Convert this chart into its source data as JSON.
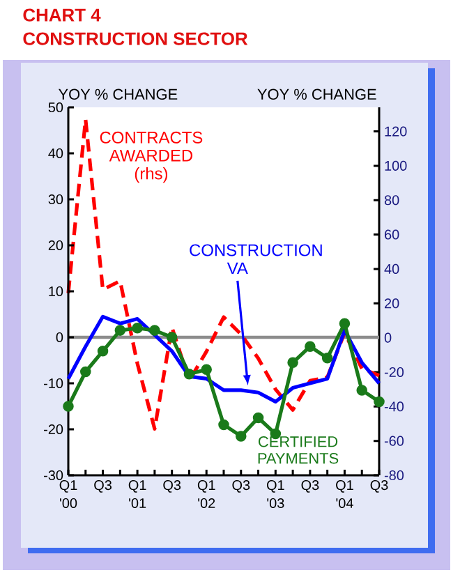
{
  "chart_data": {
    "type": "line",
    "title": "CHART 4",
    "subtitle": "CONSTRUCTION SECTOR",
    "ylabel": "YOY % CHANGE",
    "y2label": "YOY % CHANGE",
    "categories": [
      "Q1 '00",
      null,
      "Q3",
      null,
      "Q1 '01",
      null,
      "Q3",
      null,
      "Q1 '02",
      null,
      "Q3",
      null,
      "Q1 '03",
      null,
      "Q3",
      null,
      "Q1 '04",
      null,
      "Q3"
    ],
    "ylim": [
      -30,
      50
    ],
    "yticks": [
      -30,
      -20,
      -10,
      0,
      10,
      20,
      30,
      40,
      50
    ],
    "y2lim": [
      -80,
      134
    ],
    "y2ticks": [
      -80,
      -60,
      -40,
      -20,
      0,
      20,
      40,
      60,
      80,
      100,
      120
    ],
    "series": [
      {
        "name": "CONTRACTS AWARDED (rhs)",
        "color": "#ff0000",
        "axis": "y2",
        "line_style": "dashed",
        "values": [
          26,
          127,
          28,
          33,
          -15,
          -53,
          6,
          -25,
          -8,
          12,
          2,
          -12,
          -30,
          -42,
          -25,
          -23,
          3,
          -18,
          -22
        ]
      },
      {
        "name": "CONSTRUCTION VA",
        "color": "#0000ff",
        "values": [
          -9,
          -2,
          4.5,
          3,
          4,
          0.5,
          -3,
          -8.5,
          -9,
          -11.5,
          -11.5,
          -12,
          -14,
          -11,
          -10,
          -9,
          1.5,
          -5.5,
          -10
        ]
      },
      {
        "name": "CERTIFIED PAYMENTS",
        "color": "#1a7a1a",
        "marker": "circle",
        "values": [
          -15,
          -7.5,
          -3,
          1.5,
          2,
          1.5,
          0,
          -8,
          -7,
          -19,
          -21.5,
          -17.5,
          -21,
          -5.5,
          -2,
          -4.5,
          3,
          -11.5,
          -14
        ]
      }
    ],
    "ref_lines": [
      {
        "axis": "y",
        "value": 0,
        "color": "#8c8c8c"
      }
    ],
    "legend": false,
    "grid": false
  }
}
